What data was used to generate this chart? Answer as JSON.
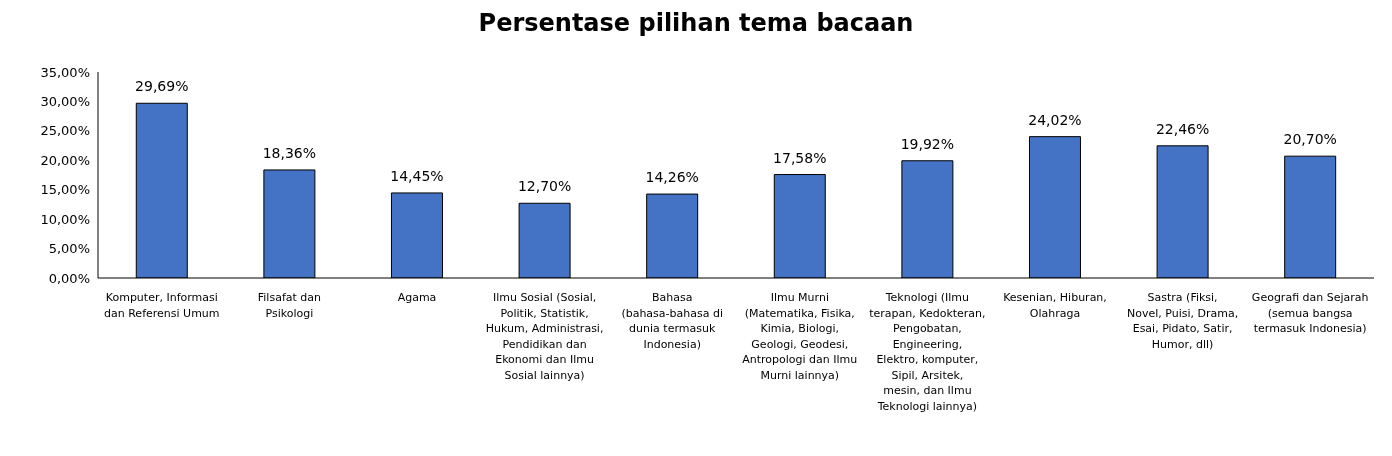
{
  "chart_data": {
    "type": "bar",
    "title": "Persentase pilihan tema bacaan",
    "categories": [
      "Komputer, Informasi dan Referensi Umum",
      "Filsafat dan Psikologi",
      "Agama",
      "Ilmu Sosial (Sosial, Politik, Statistik, Hukum, Administrasi, Pendidikan dan Ekonomi dan Ilmu Sosial lainnya)",
      "Bahasa (bahasa-bahasa di dunia termasuk Indonesia)",
      "Ilmu Murni (Matematika, Fisika, Kimia, Biologi, Geologi, Geodesi, Antropologi dan Ilmu Murni lainnya)",
      "Teknologi (Ilmu terapan, Kedokteran, Pengobatan, Engineering, Elektro, komputer, Sipil, Arsitek, mesin, dan Ilmu Teknologi lainnya)",
      "Kesenian, Hiburan, Olahraga",
      "Sastra (Fiksi, Novel, Puisi, Drama, Esai, Pidato, Satir, Humor, dll)",
      "Geografi dan Sejarah (semua bangsa termasuk Indonesia)"
    ],
    "values": [
      29.69,
      18.36,
      14.45,
      12.7,
      14.26,
      17.58,
      19.92,
      24.02,
      22.46,
      20.7
    ],
    "value_labels": [
      "29,69%",
      "18,36%",
      "14,45%",
      "12,70%",
      "14,26%",
      "17,58%",
      "19,92%",
      "24,02%",
      "22,46%",
      "20,70%"
    ],
    "color": "#4472c4",
    "ylim": [
      0,
      35
    ],
    "yticks": [
      {
        "value": 0,
        "label": "0,00%"
      },
      {
        "value": 5,
        "label": "5,00%"
      },
      {
        "value": 10,
        "label": "10,00%"
      },
      {
        "value": 15,
        "label": "15,00%"
      },
      {
        "value": 20,
        "label": "20,00%"
      },
      {
        "value": 25,
        "label": "25,00%"
      },
      {
        "value": 30,
        "label": "30,00%"
      },
      {
        "value": 35,
        "label": "35,00%"
      }
    ],
    "grid": false,
    "legend": false
  }
}
